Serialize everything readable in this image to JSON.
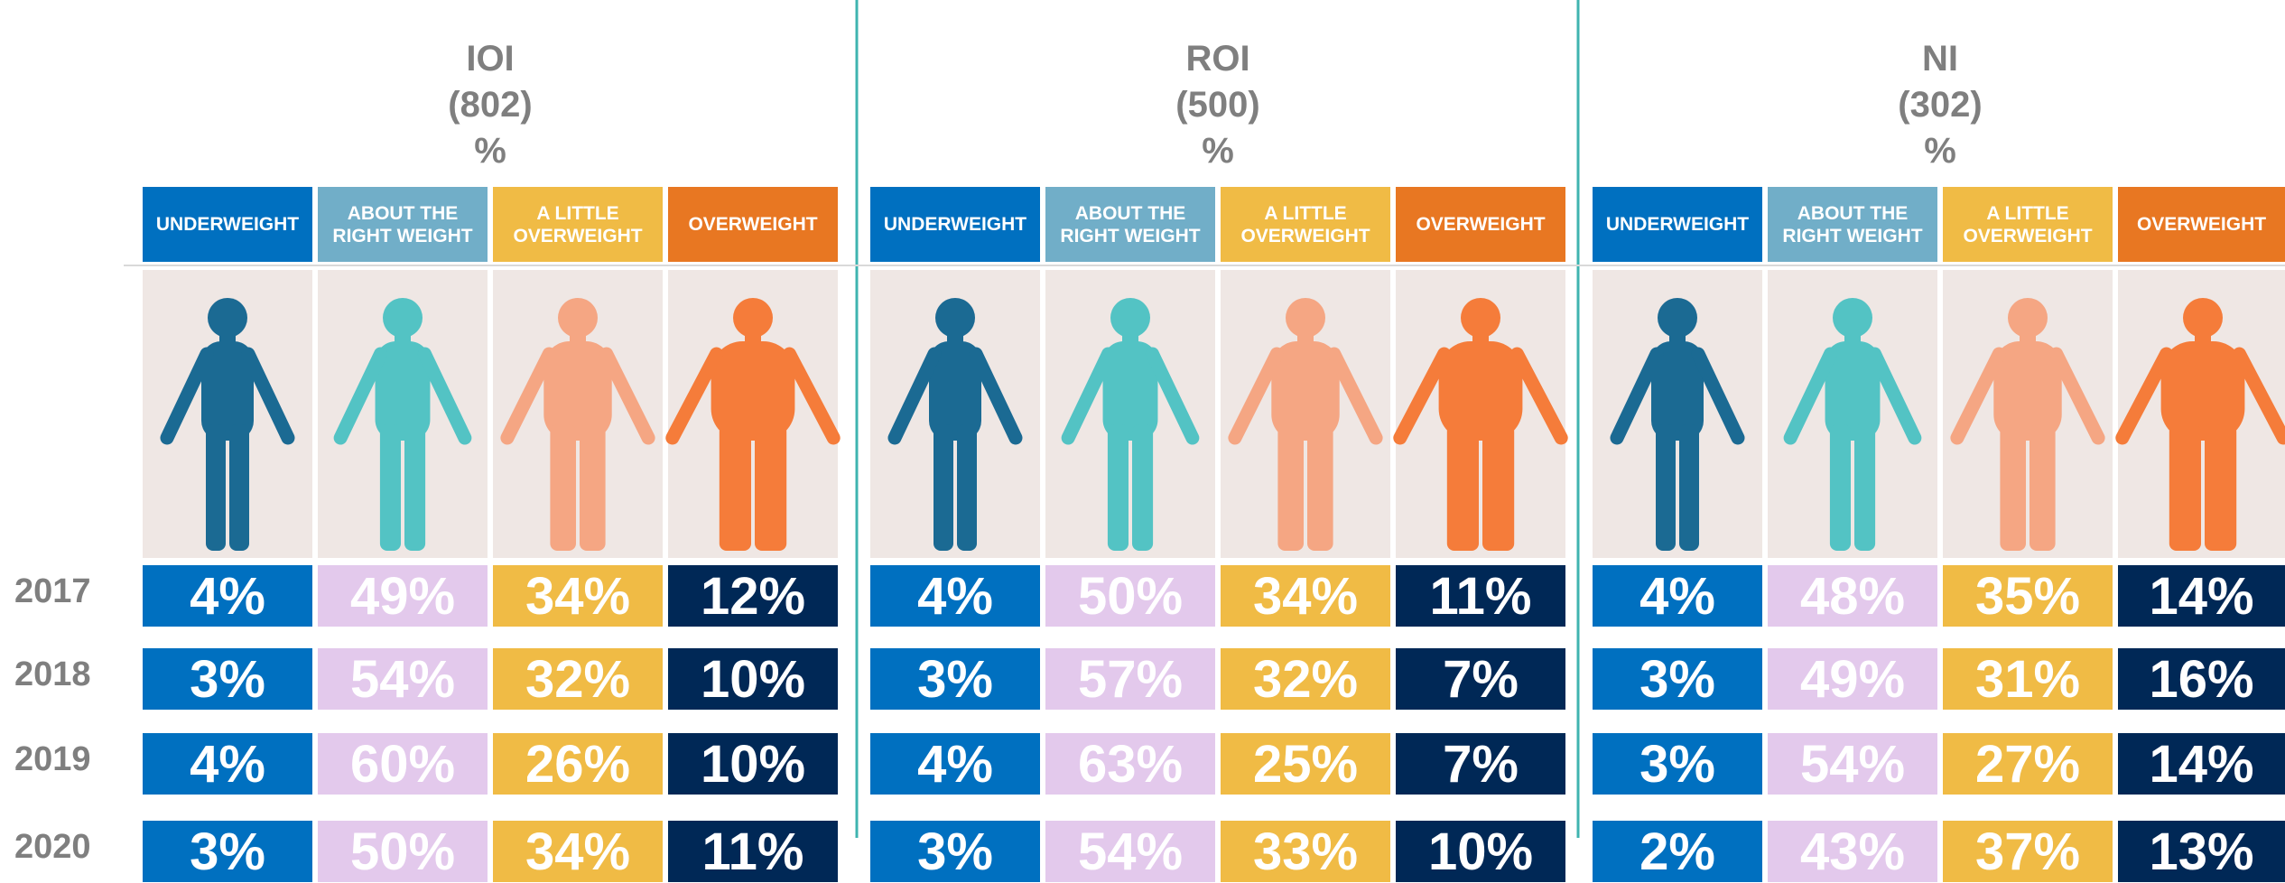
{
  "years": [
    "2017",
    "2018",
    "2019",
    "2020"
  ],
  "categories": [
    "UNDERWEIGHT",
    "ABOUT THE RIGHT WEIGHT",
    "A LITTLE OVERWEIGHT",
    "OVERWEIGHT"
  ],
  "panels": [
    {
      "region": "IOI",
      "base": "(802)",
      "unit": "%",
      "rows": [
        [
          "4%",
          "49%",
          "34%",
          "12%"
        ],
        [
          "3%",
          "54%",
          "32%",
          "10%"
        ],
        [
          "4%",
          "60%",
          "26%",
          "10%"
        ],
        [
          "3%",
          "50%",
          "34%",
          "11%"
        ]
      ]
    },
    {
      "region": "ROI",
      "base": "(500)",
      "unit": "%",
      "rows": [
        [
          "4%",
          "50%",
          "34%",
          "11%"
        ],
        [
          "3%",
          "57%",
          "32%",
          "7%"
        ],
        [
          "4%",
          "63%",
          "25%",
          "7%"
        ],
        [
          "3%",
          "54%",
          "33%",
          "10%"
        ]
      ]
    },
    {
      "region": "NI",
      "base": "(302)",
      "unit": "%",
      "rows": [
        [
          "4%",
          "48%",
          "35%",
          "14%"
        ],
        [
          "3%",
          "49%",
          "31%",
          "16%"
        ],
        [
          "3%",
          "54%",
          "27%",
          "14%"
        ],
        [
          "2%",
          "43%",
          "37%",
          "13%"
        ]
      ]
    }
  ]
}
